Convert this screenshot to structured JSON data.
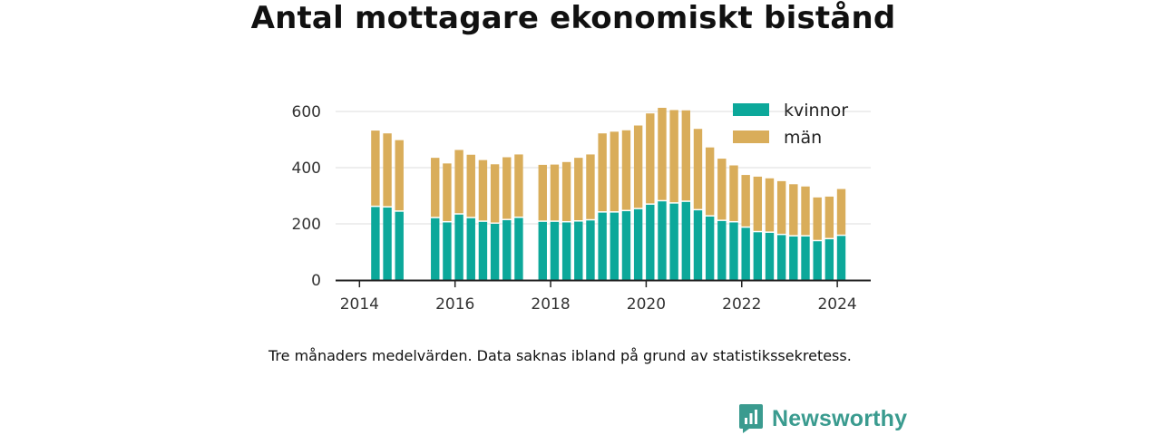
{
  "title": "Antal mottagare ekonomiskt bistånd",
  "note": "Tre månaders medelvärden. Data saknas ibland på grund av statistikssekretess.",
  "brand": {
    "name": "Newsworthy",
    "icon": "newsworthy-logo-icon"
  },
  "colors": {
    "kvinnor": "#0ca89a",
    "man": "#d9ad5a",
    "grid": "#dddddd",
    "axis": "#222222"
  },
  "chart_data": {
    "type": "bar",
    "stacked": true,
    "x_ticks": [
      "2014",
      "2016",
      "2018",
      "2020",
      "2022",
      "2024"
    ],
    "y_ticks": [
      "0",
      "200",
      "400",
      "600"
    ],
    "ylim": [
      0,
      680
    ],
    "legend": {
      "placement": "top-right",
      "entries": [
        "kvinnor",
        "män"
      ]
    },
    "grid": true,
    "x": [
      "2014-05",
      "2014-08",
      "2014-11",
      "2015-08",
      "2015-11",
      "2016-02",
      "2016-05",
      "2016-08",
      "2016-11",
      "2017-02",
      "2017-05",
      "2017-11",
      "2018-02",
      "2018-05",
      "2018-08",
      "2018-11",
      "2019-02",
      "2019-05",
      "2019-08",
      "2019-11",
      "2020-02",
      "2020-05",
      "2020-08",
      "2020-11",
      "2021-02",
      "2021-05",
      "2021-08",
      "2021-11",
      "2022-02",
      "2022-05",
      "2022-08",
      "2022-11",
      "2023-02",
      "2023-05",
      "2023-08",
      "2023-11",
      "2024-02"
    ],
    "series": [
      {
        "name": "kvinnor",
        "values": [
          260,
          258,
          243,
          220,
          205,
          233,
          220,
          207,
          200,
          213,
          221,
          207,
          207,
          205,
          208,
          212,
          240,
          240,
          245,
          252,
          268,
          280,
          272,
          278,
          248,
          226,
          210,
          205,
          186,
          170,
          168,
          160,
          155,
          155,
          138,
          145,
          157
        ]
      },
      {
        "name": "män",
        "values": [
          272,
          264,
          255,
          215,
          210,
          230,
          226,
          220,
          212,
          224,
          226,
          203,
          204,
          215,
          227,
          235,
          282,
          288,
          288,
          298,
          325,
          333,
          333,
          326,
          290,
          246,
          222,
          203,
          188,
          198,
          194,
          192,
          186,
          178,
          156,
          152,
          167
        ]
      }
    ]
  }
}
